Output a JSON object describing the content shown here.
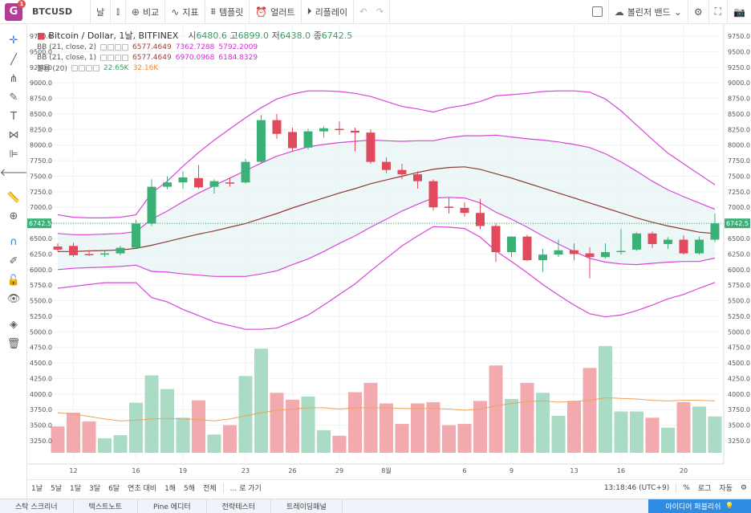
{
  "topbar": {
    "logo_letter": "G",
    "badge": "1",
    "symbol": "BTCUSD",
    "interval": "날",
    "compare": "비교",
    "indicators": "지표",
    "templates": "템플릿",
    "alert": "얼러트",
    "replay": "리플레이",
    "indicator_name": "볼린저 밴드"
  },
  "legend": {
    "title": "Bitcoin / Dollar, 1날, BITFINEX",
    "o_label": "시",
    "o": "6480.6",
    "h_label": "고",
    "h": "6899.0",
    "l_label": "저",
    "l": "6438.0",
    "c_label": "종",
    "c": "6742.5",
    "bb1": {
      "name": "BB (21, close, 2)",
      "v1": "6577.4649",
      "v2": "7362.7288",
      "v3": "5792.2009"
    },
    "bb2": {
      "name": "BB (21, close, 1)",
      "v1": "6577.4649",
      "v2": "6970.0968",
      "v3": "6184.8329"
    },
    "vol": {
      "name": "볼륨 (20)",
      "v1": "22.65K",
      "v2": "32.16K"
    }
  },
  "bottom": {
    "timeframes": [
      "1날",
      "5날",
      "1달",
      "3달",
      "6달",
      "연초 대비",
      "1해",
      "5해",
      "전체"
    ],
    "goto": "... 로 가기",
    "time": "13:18:46 (UTC+9)",
    "percent": "%",
    "log": "로그",
    "auto": "자동"
  },
  "panel": {
    "tabs": [
      "스탁 스크리너",
      "텍스트노트",
      "Pine 에디터",
      "전략테스터",
      "트레이딩패널"
    ],
    "idea": "아이디어 퍼블리쉬"
  },
  "chart_data": {
    "type": "candlestick",
    "price_ticks": [
      3250,
      3500,
      3750,
      4000,
      4250,
      4500,
      4750,
      5000,
      5250,
      5500,
      5750,
      6000,
      6250,
      6500,
      6750,
      7000,
      7250,
      7500,
      7750,
      8000,
      8250,
      8500,
      8750,
      9000,
      9250,
      9500,
      9750
    ],
    "x_labels": [
      {
        "i": 1,
        "t": "12"
      },
      {
        "i": 5,
        "t": "16"
      },
      {
        "i": 8,
        "t": "19"
      },
      {
        "i": 12,
        "t": "23"
      },
      {
        "i": 15,
        "t": "26"
      },
      {
        "i": 18,
        "t": "29"
      },
      {
        "i": 21,
        "t": "8월"
      },
      {
        "i": 26,
        "t": "6"
      },
      {
        "i": 29,
        "t": "9"
      },
      {
        "i": 33,
        "t": "13"
      },
      {
        "i": 36,
        "t": "16"
      },
      {
        "i": 40,
        "t": "20"
      }
    ],
    "last_price": "6742.5",
    "candles": [
      {
        "o": 6370,
        "h": 6420,
        "l": 6290,
        "c": 6320
      },
      {
        "o": 6380,
        "h": 6430,
        "l": 6200,
        "c": 6230
      },
      {
        "o": 6250,
        "h": 6310,
        "l": 6220,
        "c": 6240
      },
      {
        "o": 6240,
        "h": 6300,
        "l": 6200,
        "c": 6260
      },
      {
        "o": 6260,
        "h": 6380,
        "l": 6230,
        "c": 6350
      },
      {
        "o": 6350,
        "h": 6800,
        "l": 6340,
        "c": 6740
      },
      {
        "o": 6740,
        "h": 7450,
        "l": 6700,
        "c": 7330
      },
      {
        "o": 7330,
        "h": 7500,
        "l": 7290,
        "c": 7400
      },
      {
        "o": 7400,
        "h": 7580,
        "l": 7300,
        "c": 7480
      },
      {
        "o": 7470,
        "h": 7680,
        "l": 7300,
        "c": 7320
      },
      {
        "o": 7330,
        "h": 7450,
        "l": 7220,
        "c": 7420
      },
      {
        "o": 7400,
        "h": 7480,
        "l": 7330,
        "c": 7390
      },
      {
        "o": 7400,
        "h": 7780,
        "l": 7380,
        "c": 7730
      },
      {
        "o": 7730,
        "h": 8480,
        "l": 7700,
        "c": 8400
      },
      {
        "o": 8400,
        "h": 8500,
        "l": 8100,
        "c": 8180
      },
      {
        "o": 8210,
        "h": 8280,
        "l": 7900,
        "c": 7950
      },
      {
        "o": 7960,
        "h": 8260,
        "l": 7930,
        "c": 8220
      },
      {
        "o": 8220,
        "h": 8300,
        "l": 8120,
        "c": 8270
      },
      {
        "o": 8260,
        "h": 8380,
        "l": 8160,
        "c": 8240
      },
      {
        "o": 8230,
        "h": 8280,
        "l": 7900,
        "c": 8200
      },
      {
        "o": 8200,
        "h": 8250,
        "l": 7700,
        "c": 7730
      },
      {
        "o": 7730,
        "h": 7800,
        "l": 7550,
        "c": 7600
      },
      {
        "o": 7600,
        "h": 7700,
        "l": 7450,
        "c": 7530
      },
      {
        "o": 7530,
        "h": 7580,
        "l": 7300,
        "c": 7420
      },
      {
        "o": 7420,
        "h": 7450,
        "l": 6950,
        "c": 7000
      },
      {
        "o": 7010,
        "h": 7150,
        "l": 6900,
        "c": 6990
      },
      {
        "o": 6990,
        "h": 7080,
        "l": 6850,
        "c": 6910
      },
      {
        "o": 6910,
        "h": 7140,
        "l": 6650,
        "c": 6700
      },
      {
        "o": 6700,
        "h": 6740,
        "l": 6120,
        "c": 6280
      },
      {
        "o": 6280,
        "h": 6530,
        "l": 6200,
        "c": 6530
      },
      {
        "o": 6530,
        "h": 6560,
        "l": 6140,
        "c": 6150
      },
      {
        "o": 6150,
        "h": 6330,
        "l": 5960,
        "c": 6240
      },
      {
        "o": 6240,
        "h": 6480,
        "l": 6200,
        "c": 6310
      },
      {
        "o": 6310,
        "h": 6420,
        "l": 6150,
        "c": 6250
      },
      {
        "o": 6260,
        "h": 6360,
        "l": 5860,
        "c": 6200
      },
      {
        "o": 6200,
        "h": 6420,
        "l": 6180,
        "c": 6280
      },
      {
        "o": 6280,
        "h": 6650,
        "l": 6240,
        "c": 6300
      },
      {
        "o": 6320,
        "h": 6600,
        "l": 6300,
        "c": 6580
      },
      {
        "o": 6580,
        "h": 6610,
        "l": 6350,
        "c": 6410
      },
      {
        "o": 6410,
        "h": 6520,
        "l": 6330,
        "c": 6480
      },
      {
        "o": 6480,
        "h": 6550,
        "l": 6240,
        "c": 6260
      },
      {
        "o": 6260,
        "h": 6530,
        "l": 6240,
        "c": 6480
      },
      {
        "o": 6480,
        "h": 6899,
        "l": 6438,
        "c": 6742.5
      }
    ],
    "volumes": [
      3480,
      3700,
      3560,
      3290,
      3340,
      3860,
      4300,
      4080,
      3620,
      3900,
      3350,
      3500,
      4290,
      4730,
      4020,
      3910,
      3960,
      3420,
      3330,
      4030,
      4180,
      3850,
      3520,
      3850,
      3870,
      3500,
      3520,
      3890,
      4460,
      3920,
      4180,
      4020,
      3650,
      3890,
      4420,
      4770,
      3720,
      3720,
      3620,
      3460,
      3870,
      3800,
      3640
    ],
    "bb_mid": [
      6290,
      6290,
      6300,
      6305,
      6315,
      6340,
      6390,
      6450,
      6510,
      6570,
      6620,
      6680,
      6740,
      6820,
      6900,
      6990,
      7070,
      7150,
      7230,
      7300,
      7380,
      7440,
      7500,
      7560,
      7610,
      7640,
      7650,
      7610,
      7540,
      7470,
      7390,
      7310,
      7230,
      7150,
      7070,
      6990,
      6910,
      6830,
      6760,
      6700,
      6650,
      6600,
      6577
    ],
    "bb_up2": [
      6880,
      6840,
      6830,
      6830,
      6840,
      6880,
      7230,
      7420,
      7660,
      7880,
      8080,
      8260,
      8440,
      8600,
      8740,
      8820,
      8870,
      8870,
      8860,
      8830,
      8780,
      8700,
      8620,
      8580,
      8530,
      8600,
      8640,
      8700,
      8790,
      8810,
      8830,
      8860,
      8870,
      8870,
      8850,
      8740,
      8550,
      8320,
      8090,
      7870,
      7700,
      7530,
      7363
    ],
    "bb_lo2": [
      5700,
      5730,
      5760,
      5790,
      5790,
      5790,
      5550,
      5480,
      5360,
      5260,
      5160,
      5100,
      5040,
      5040,
      5060,
      5160,
      5270,
      5430,
      5600,
      5770,
      5980,
      6180,
      6380,
      6540,
      6690,
      6680,
      6660,
      6520,
      6300,
      6130,
      5950,
      5760,
      5590,
      5430,
      5290,
      5240,
      5270,
      5340,
      5430,
      5530,
      5600,
      5700,
      5792
    ],
    "bb_up1": [
      6580,
      6560,
      6560,
      6570,
      6580,
      6610,
      6810,
      6940,
      7090,
      7230,
      7350,
      7470,
      7590,
      7710,
      7820,
      7900,
      7970,
      8010,
      8040,
      8060,
      8080,
      8070,
      8060,
      8070,
      8070,
      8120,
      8150,
      8150,
      8160,
      8130,
      8100,
      8080,
      8050,
      8010,
      7960,
      7860,
      7730,
      7580,
      7420,
      7280,
      7170,
      7070,
      6970
    ],
    "bb_lo1": [
      6000,
      6020,
      6030,
      6040,
      6050,
      6070,
      5970,
      5960,
      5930,
      5910,
      5890,
      5890,
      5890,
      5930,
      5980,
      6080,
      6170,
      6290,
      6420,
      6540,
      6680,
      6810,
      6940,
      7050,
      7150,
      7160,
      7150,
      7070,
      6920,
      6810,
      6680,
      6540,
      6410,
      6290,
      6180,
      6120,
      6090,
      6080,
      6100,
      6120,
      6130,
      6130,
      6185
    ],
    "vol_ma": [
      3700,
      3680,
      3640,
      3600,
      3570,
      3580,
      3600,
      3610,
      3600,
      3590,
      3570,
      3600,
      3650,
      3700,
      3740,
      3760,
      3780,
      3780,
      3760,
      3780,
      3780,
      3780,
      3770,
      3770,
      3770,
      3760,
      3740,
      3760,
      3810,
      3850,
      3880,
      3890,
      3870,
      3880,
      3900,
      3940,
      3930,
      3920,
      3900,
      3890,
      3900,
      3900,
      3890
    ]
  }
}
